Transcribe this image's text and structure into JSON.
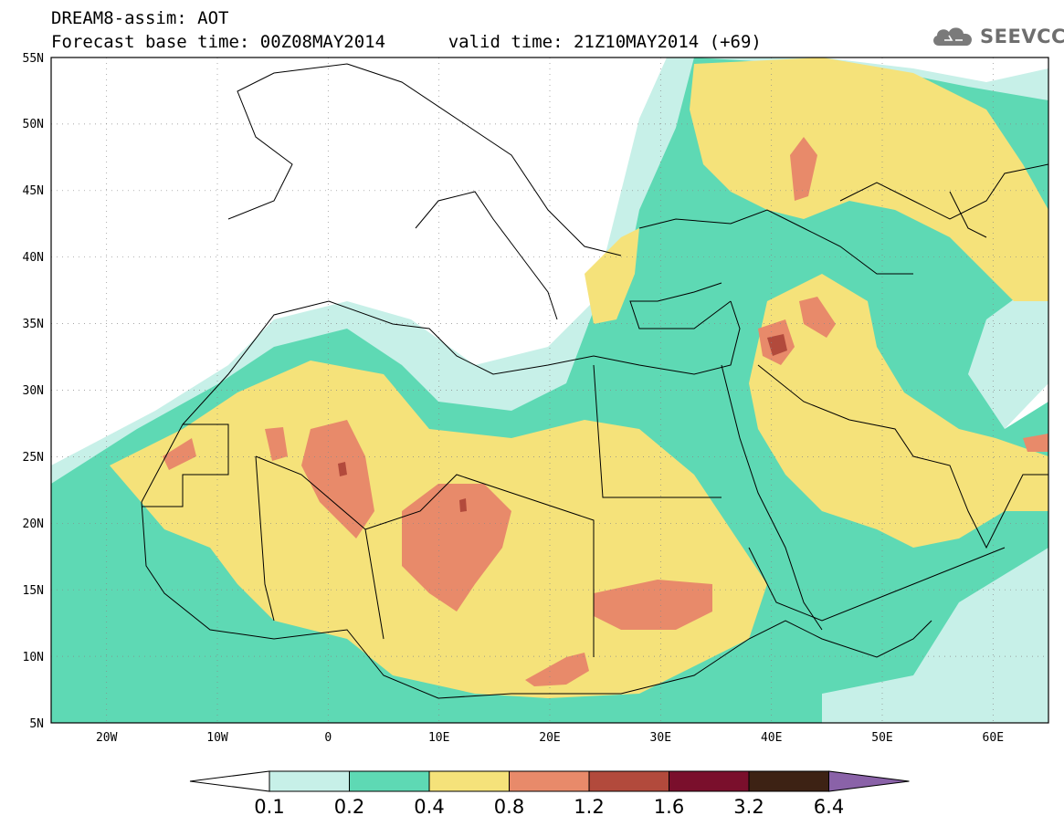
{
  "title": {
    "line1": "DREAM8-assim: AOT",
    "line2_left": "Forecast base time: 00Z08MAY2014",
    "line2_right": "valid time: 21Z10MAY2014 (+69)"
  },
  "logo": {
    "text": "SEEVCCC",
    "icon": "cloud-icon"
  },
  "map": {
    "variable": "AOT",
    "lon_range": [
      -25,
      65
    ],
    "lat_range": [
      5,
      55
    ],
    "lat_ticks": [
      "5N",
      "10N",
      "15N",
      "20N",
      "25N",
      "30N",
      "35N",
      "40N",
      "45N",
      "50N",
      "55N"
    ],
    "lon_ticks": [
      "20W",
      "10W",
      "0",
      "10E",
      "20E",
      "30E",
      "40E",
      "50E",
      "60E"
    ],
    "grid": "dotted"
  },
  "legend": {
    "labels": [
      "0.1",
      "0.2",
      "0.4",
      "0.8",
      "1.2",
      "1.6",
      "3.2",
      "6.4"
    ],
    "colors": [
      "#ffffff",
      "#c7f0e8",
      "#5ed9b4",
      "#f5e27a",
      "#e88a6a",
      "#b24a3c",
      "#7a0f2c",
      "#3d2214",
      "#8a62a8"
    ]
  }
}
